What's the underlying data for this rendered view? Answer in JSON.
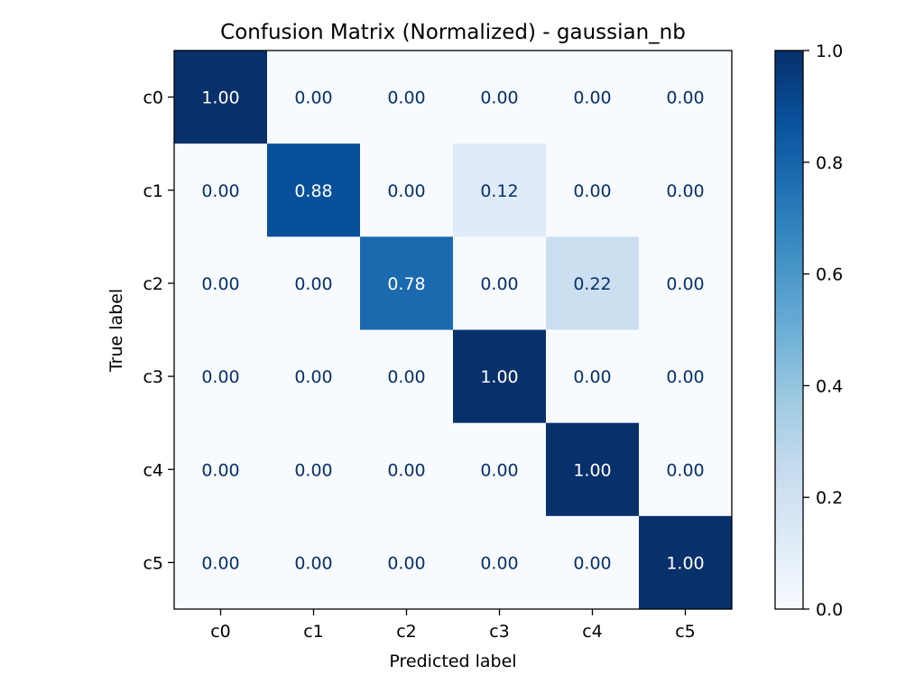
{
  "chart_data": {
    "type": "heatmap",
    "title": "Confusion Matrix (Normalized) - gaussian_nb",
    "xlabel": "Predicted label",
    "ylabel": "True label",
    "x_categories": [
      "c0",
      "c1",
      "c2",
      "c3",
      "c4",
      "c5"
    ],
    "y_categories": [
      "c0",
      "c1",
      "c2",
      "c3",
      "c4",
      "c5"
    ],
    "values": [
      [
        1.0,
        0.0,
        0.0,
        0.0,
        0.0,
        0.0
      ],
      [
        0.0,
        0.88,
        0.0,
        0.12,
        0.0,
        0.0
      ],
      [
        0.0,
        0.0,
        0.78,
        0.0,
        0.22,
        0.0
      ],
      [
        0.0,
        0.0,
        0.0,
        1.0,
        0.0,
        0.0
      ],
      [
        0.0,
        0.0,
        0.0,
        0.0,
        1.0,
        0.0
      ],
      [
        0.0,
        0.0,
        0.0,
        0.0,
        0.0,
        1.0
      ]
    ],
    "value_format": "0.00",
    "colormap": "Blues",
    "colorbar": {
      "range": [
        0.0,
        1.0
      ],
      "ticks": [
        "0.0",
        "0.2",
        "0.4",
        "0.6",
        "0.8",
        "1.0"
      ]
    },
    "text_colors": {
      "dark_cell": "#ffffff",
      "light_cell": "#08306b"
    },
    "grid": false
  }
}
